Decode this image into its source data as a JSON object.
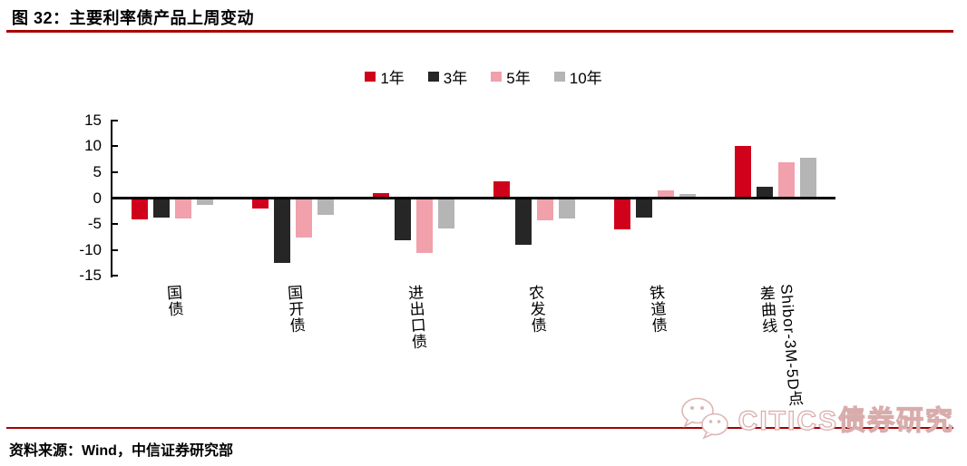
{
  "header": {
    "title": "图 32：主要利率债产品上周变动"
  },
  "footer": {
    "source": "资料来源：Wind，中信证券研究部"
  },
  "watermark": {
    "brand": "CITICS债券研究",
    "icon": "wechat-icon"
  },
  "colors": {
    "rule_red": "#a80000",
    "series_1y_red": "#d0021b",
    "series_3y_dark": "#262626",
    "series_5y_pink": "#f0a1ac",
    "series_10y_gray": "#b5b5b5",
    "watermark_outline": "#d9acac"
  },
  "chart_data": {
    "type": "bar",
    "title": "",
    "xlabel": "",
    "ylabel": "",
    "categories": [
      "国债",
      "国开债",
      "进出口债",
      "农发债",
      "铁道债",
      "Shibor-3M-5D点差曲线"
    ],
    "series": [
      {
        "name": "1年",
        "color": "#d0021b",
        "values": [
          -4.1,
          -2.0,
          0.9,
          3.2,
          -6.0,
          10.0
        ]
      },
      {
        "name": "3年",
        "color": "#262626",
        "values": [
          -3.8,
          -12.4,
          -8.1,
          -9.0,
          -3.7,
          2.1
        ]
      },
      {
        "name": "5年",
        "color": "#f0a1ac",
        "values": [
          -4.0,
          -7.6,
          -10.5,
          -4.2,
          1.5,
          6.9
        ]
      },
      {
        "name": "10年",
        "color": "#b5b5b5",
        "values": [
          -1.3,
          -3.2,
          -5.8,
          -4.0,
          0.8,
          7.7
        ]
      }
    ],
    "ylim": [
      -15,
      15
    ],
    "yticks": [
      15,
      10,
      5,
      0,
      -5,
      -10,
      -15
    ],
    "grid": false,
    "legend_position": "top"
  }
}
